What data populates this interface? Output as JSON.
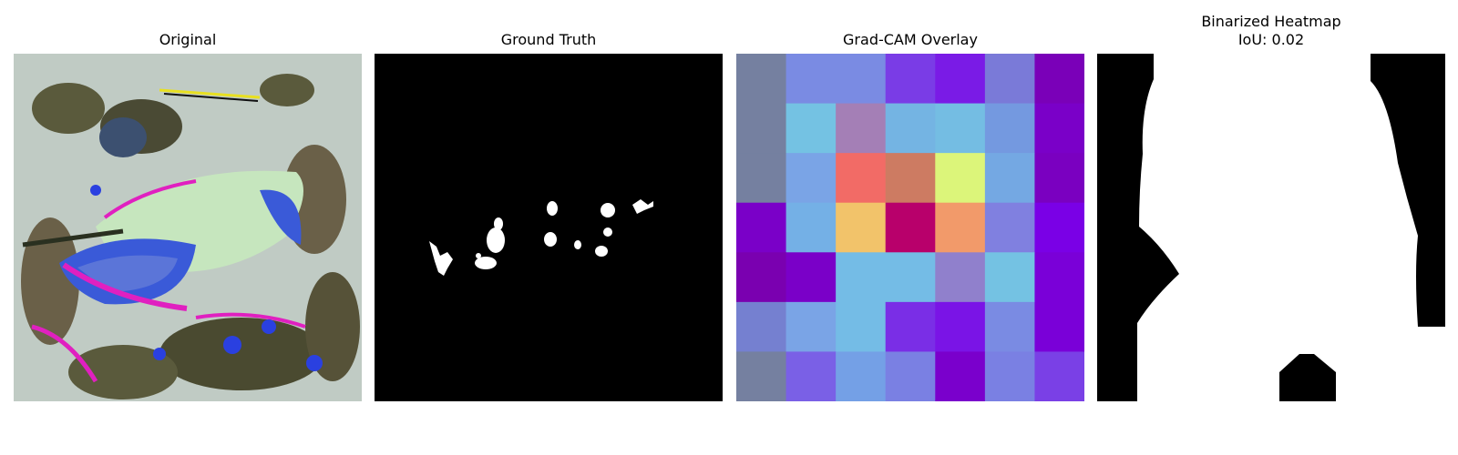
{
  "panels": {
    "original": {
      "title": "Original"
    },
    "ground_truth": {
      "title": "Ground Truth"
    },
    "gradcam": {
      "title": "Grad-CAM Overlay",
      "grid_colors": [
        [
          "#7580a0",
          "#7a8be3",
          "#7a8be3",
          "#7a3ce6",
          "#7a1be6",
          "#7a7ad8",
          "#7a00b8"
        ],
        [
          "#7580a0",
          "#74c2e3",
          "#a47fb6",
          "#74b4e3",
          "#74bde3",
          "#7499e0",
          "#7a00c8"
        ],
        [
          "#7580a0",
          "#7aa4e6",
          "#f26b66",
          "#cd7b62",
          "#dcf57a",
          "#74a8e3",
          "#7a00c0"
        ],
        [
          "#7a00c8",
          "#74b0e6",
          "#f2c36a",
          "#b8006b",
          "#f29a6a",
          "#8080e0",
          "#7a00e6"
        ],
        [
          "#7a00b0",
          "#7a00c8",
          "#74bce6",
          "#74bce6",
          "#9080cc",
          "#74c2e3",
          "#7a00d8"
        ],
        [
          "#7580d0",
          "#7aa4e6",
          "#74bce6",
          "#7a2ee6",
          "#7a14e6",
          "#7a8be3",
          "#7a00d8"
        ],
        [
          "#7580a0",
          "#7a60e6",
          "#74a0e6",
          "#7a80e3",
          "#7a00cc",
          "#7a80e3",
          "#7a40e6"
        ]
      ]
    },
    "binarized": {
      "title": "Binarized Heatmap",
      "subtitle": "IoU: 0.02"
    }
  },
  "colors": {
    "mask_bg": "#000000",
    "mask_fg": "#ffffff"
  }
}
